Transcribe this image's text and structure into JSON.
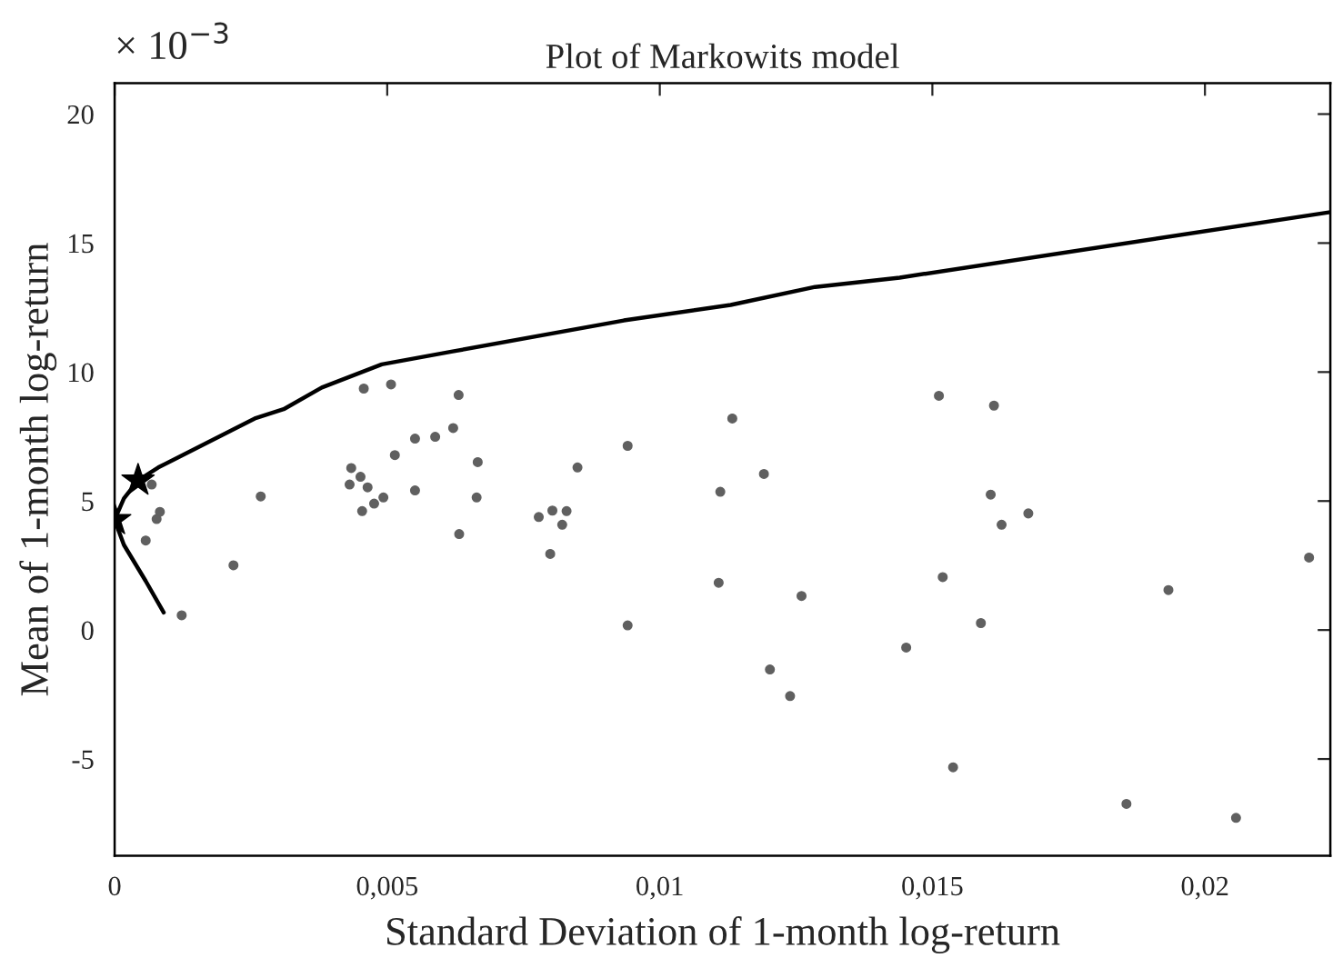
{
  "chart_data": {
    "type": "scatter",
    "title": "Plot of Markowits model",
    "xlabel": "Standard Deviation of 1-month log-return",
    "ylabel": "Mean of 1-month log-return",
    "annotations": [
      "× 10$^{−3}$"
    ],
    "xlim": [
      0,
      0.0223
    ],
    "ylim": [
      -8.75,
      21.2
    ],
    "xticks": [
      0,
      {
        "value": 0.005,
        "label": "0,005"
      },
      {
        "value": 0.01,
        "label": "0,01"
      },
      {
        "value": 0.015,
        "label": "0,015"
      },
      {
        "value": 0.02,
        "label": "0,02"
      }
    ],
    "yticks": [
      -5,
      0,
      5,
      10,
      15,
      20
    ],
    "grid": false,
    "legend": false,
    "series": [
      {
        "type": "line",
        "color": "#000000",
        "marker": "none",
        "line_style": "solid",
        "x": [
          0.0009,
          0.00057,
          0.00017,
          0.0,
          0.00017,
          0.00043,
          0.0008,
          0.00257,
          0.0031,
          0.0038,
          0.0049,
          0.0062,
          0.00934,
          0.0113,
          0.01285,
          0.0144,
          0.0223
        ],
        "values": [
          0.68,
          1.9,
          3.3,
          4.27,
          5.1,
          5.8,
          6.3,
          8.2,
          8.56,
          9.4,
          10.3,
          10.8,
          12.0,
          12.6,
          13.3,
          13.66,
          16.2
        ]
      },
      {
        "color": "#606060",
        "marker": "circle",
        "x": [
          0.00068,
          0.00077,
          0.00083,
          0.00057,
          0.00123,
          0.00218,
          0.00268,
          0.00457,
          0.00507,
          0.00434,
          0.00451,
          0.00431,
          0.00464,
          0.00454,
          0.00476,
          0.00493,
          0.00551,
          0.00514,
          0.00551,
          0.00588,
          0.00621,
          0.00631,
          0.00666,
          0.00664,
          0.00632,
          0.00849,
          0.00941,
          0.00803,
          0.00829,
          0.00778,
          0.00821,
          0.00799,
          0.00941,
          0.01133,
          0.01191,
          0.01111,
          0.01108,
          0.0126,
          0.01202,
          0.01512,
          0.01613,
          0.01607,
          0.01676,
          0.01627,
          0.01519,
          0.01589,
          0.01933,
          0.02191,
          0.01239,
          0.01452,
          0.01538,
          0.01856,
          0.02057
        ],
        "values": [
          5.64,
          4.3,
          4.58,
          3.47,
          0.57,
          2.51,
          5.18,
          9.36,
          9.52,
          6.28,
          5.94,
          5.64,
          5.53,
          4.61,
          4.9,
          5.14,
          5.41,
          6.78,
          7.42,
          7.49,
          7.83,
          9.11,
          6.51,
          5.14,
          3.72,
          6.3,
          7.14,
          4.63,
          4.61,
          4.38,
          4.08,
          2.95,
          0.18,
          8.2,
          6.05,
          5.36,
          1.83,
          1.32,
          -1.53,
          9.08,
          8.7,
          5.25,
          4.52,
          4.08,
          2.05,
          0.27,
          1.55,
          2.81,
          -2.56,
          -0.68,
          -5.32,
          -6.74,
          -7.28
        ]
      },
      {
        "color": "#000000",
        "marker": "star",
        "x": [
          0.0,
          0.00043
        ],
        "values": [
          4.27,
          5.8
        ]
      }
    ]
  }
}
